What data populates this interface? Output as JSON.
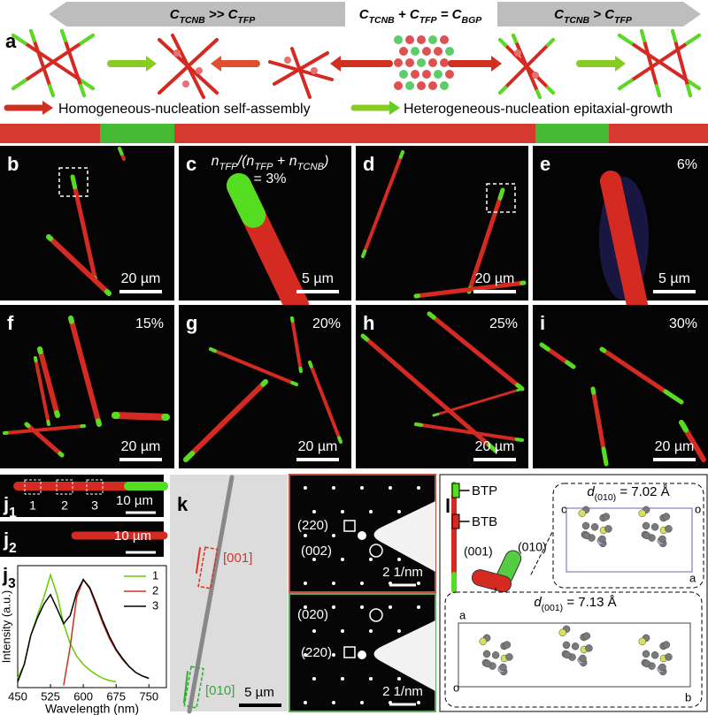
{
  "panel_a": {
    "label": "a",
    "arrow_left": [
      "C",
      "TCNB",
      " >> C",
      "TFP"
    ],
    "center": [
      "C",
      "TCNB",
      " + C",
      "TFP",
      " = C",
      "BGP"
    ],
    "arrow_right": [
      "C",
      "TCNB",
      " > C",
      "TFP"
    ],
    "legend_red": "Homogeneous-nucleation self-assembly",
    "legend_green": "Heterogeneous-nucleation epitaxial-growth"
  },
  "panel_b": {
    "label": "b",
    "scale": "20 µm"
  },
  "panel_c": {
    "label": "c",
    "ratio": [
      "n",
      "TFP",
      "/(n",
      "TFP",
      " + n",
      "TCNB",
      ")"
    ],
    "ratio_value": "= 3%",
    "scale": "5 µm"
  },
  "panel_d": {
    "label": "d",
    "scale": "20 µm"
  },
  "panel_e": {
    "label": "e",
    "percent": "6%",
    "scale": "5 µm"
  },
  "panel_f": {
    "label": "f",
    "percent": "15%",
    "scale": "20 µm"
  },
  "panel_g": {
    "label": "g",
    "percent": "20%",
    "scale": "20 µm"
  },
  "panel_h": {
    "label": "h",
    "percent": "25%",
    "scale": "20 µm"
  },
  "panel_i": {
    "label": "i",
    "percent": "30%",
    "scale": "20 µm"
  },
  "panel_j1": {
    "label": [
      "j",
      "1"
    ],
    "boxes": [
      "1",
      "2",
      "3"
    ],
    "scale": "10 µm"
  },
  "panel_j2": {
    "label": [
      "j",
      "2"
    ],
    "scale": "10 µm"
  },
  "panel_j3": {
    "label": [
      "j",
      "3"
    ]
  },
  "panel_k": {
    "label": "k",
    "dir_red": "[001]",
    "dir_green": "[010]",
    "scale": "5 µm",
    "saed_top": {
      "spot1": "(220)",
      "spot2": "(002)",
      "scale": "2 1/nm"
    },
    "saed_bottom": {
      "spot1": "(020)",
      "spot2": "(220)",
      "scale": "2 1/nm"
    }
  },
  "panel_l": {
    "label": "l",
    "btp": "BTP",
    "btb": "BTB",
    "face1": "(001)",
    "face2": "(010)",
    "d010": [
      "d",
      "(010)",
      " = 7.02 Å"
    ],
    "axes_top": [
      "c",
      "o",
      "a"
    ],
    "d001": [
      "d",
      "(001)",
      " = 7.13 Å"
    ],
    "axes_bottom": [
      "a",
      "o",
      "b"
    ]
  },
  "chart_data": {
    "type": "line",
    "xlabel": "Wavelength (nm)",
    "ylabel": "Intensity (a.u.)",
    "x": [
      450,
      465,
      480,
      495,
      510,
      525,
      540,
      555,
      570,
      585,
      600,
      615,
      630,
      645,
      660,
      675,
      690,
      705,
      720,
      735,
      750
    ],
    "series": [
      {
        "name": "1",
        "color": "#66cc00",
        "values": [
          0.08,
          0.2,
          0.45,
          0.62,
          0.78,
          0.97,
          0.8,
          0.55,
          0.38,
          0.27,
          0.2,
          0.15,
          0.11,
          0.08,
          0.06,
          0.05,
          null,
          null,
          null,
          null,
          null
        ]
      },
      {
        "name": "2",
        "color": "#cc3322",
        "values": [
          null,
          null,
          null,
          null,
          null,
          null,
          null,
          0.02,
          0.35,
          0.78,
          0.93,
          0.85,
          0.7,
          0.55,
          0.42,
          0.32,
          0.24,
          0.18,
          0.13,
          0.1,
          0.08
        ]
      },
      {
        "name": "3",
        "color": "#000000",
        "values": [
          0.05,
          0.2,
          0.45,
          0.6,
          0.72,
          0.8,
          0.68,
          0.55,
          0.62,
          0.82,
          0.93,
          0.86,
          0.72,
          0.57,
          0.44,
          0.33,
          0.25,
          0.18,
          0.13,
          0.1,
          0.08
        ]
      }
    ],
    "xlim": [
      450,
      790
    ],
    "xticks": [
      450,
      525,
      600,
      675,
      750
    ],
    "ylim": [
      0,
      1.05
    ]
  }
}
